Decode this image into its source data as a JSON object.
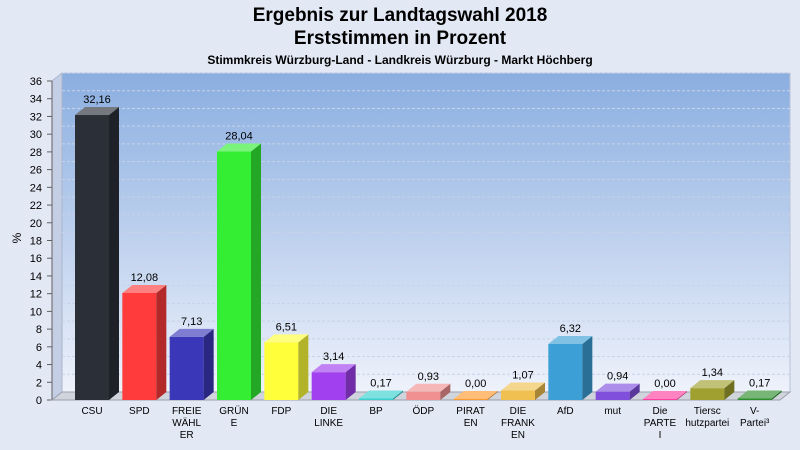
{
  "header": {
    "title_line1": "Ergebnis zur Landtagswahl 2018",
    "title_line2": "Erststimmen in Prozent",
    "subtitle": "Stimmkreis Würzburg-Land - Landkreis Würzburg - Markt Höchberg"
  },
  "chart_data": {
    "type": "bar",
    "ylabel": "%",
    "ylim": [
      0,
      36
    ],
    "yticks": [
      0,
      2,
      4,
      6,
      8,
      10,
      12,
      14,
      16,
      18,
      20,
      22,
      24,
      26,
      28,
      30,
      32,
      34,
      36
    ],
    "grid": true,
    "categories": [
      "CSU",
      "SPD",
      "FREIE WÄHLER",
      "GRÜNE",
      "FDP",
      "DIE LINKE",
      "BP",
      "ÖDP",
      "PIRATEN",
      "DIE FRANKEN",
      "AfD",
      "mut",
      "Die PARTEI",
      "Tierschutzpartei",
      "V-Partei³"
    ],
    "category_label_lines": [
      [
        "CSU"
      ],
      [
        "SPD"
      ],
      [
        "FREIE",
        "WÄHL",
        "ER"
      ],
      [
        "GRÜN",
        "E"
      ],
      [
        "FDP"
      ],
      [
        "DIE",
        "LINKE"
      ],
      [
        "BP"
      ],
      [
        "ÖDP"
      ],
      [
        "PIRAT",
        "EN"
      ],
      [
        "DIE",
        "FRANK",
        "EN"
      ],
      [
        "AfD"
      ],
      [
        "mut"
      ],
      [
        "Die",
        "PARTE",
        "I"
      ],
      [
        "Tiersc",
        "hutzpartei"
      ],
      [
        "V-",
        "Partei³"
      ]
    ],
    "values": [
      32.16,
      12.08,
      7.13,
      28.04,
      6.51,
      3.14,
      0.17,
      0.93,
      0.0,
      1.07,
      6.32,
      0.94,
      0.0,
      1.34,
      0.17
    ],
    "value_labels": [
      "32,16",
      "12,08",
      "7,13",
      "28,04",
      "6,51",
      "3,14",
      "0,17",
      "0,93",
      "0,00",
      "1,07",
      "6,32",
      "0,94",
      "0,00",
      "1,34",
      "0,17"
    ],
    "colors": [
      "#2b2f38",
      "#ff3b3b",
      "#3a37b8",
      "#33ee33",
      "#ffff3a",
      "#a040ee",
      "#3ad0d0",
      "#f09090",
      "#ff9a30",
      "#f0c050",
      "#3ca0d6",
      "#8050dd",
      "#ff40a0",
      "#a0a030",
      "#2f8f2f"
    ]
  }
}
